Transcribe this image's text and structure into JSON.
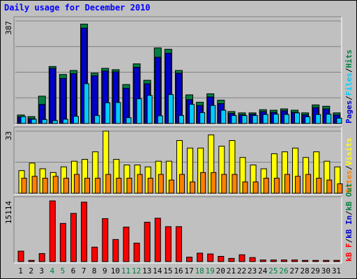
{
  "title": "Daily usage for December 2010",
  "colors": {
    "background": "#c0c0c0",
    "pages": "#0000cc",
    "files": "#00ccff",
    "hits": "#008040",
    "visits": "#ffff00",
    "sites": "#ff8000",
    "kbin": "#ff0000",
    "kbout": "#ff0000",
    "grid": "#808080"
  },
  "chart_data": [
    {
      "type": "bar",
      "name": "hits-files-pages",
      "y_max_label": "387",
      "ylim": [
        0,
        387
      ],
      "grid": true,
      "categories": [
        "1",
        "2",
        "3",
        "4",
        "5",
        "6",
        "7",
        "8",
        "9",
        "10",
        "11",
        "12",
        "13",
        "14",
        "15",
        "16",
        "17",
        "18",
        "19",
        "20",
        "21",
        "22",
        "23",
        "24",
        "25",
        "26",
        "27",
        "28",
        "29",
        "30",
        "31"
      ],
      "weekend_days": [
        4,
        5,
        11,
        12,
        18,
        19,
        25,
        26
      ],
      "axis_label_parts": [
        "Pages",
        "/",
        "Files",
        "/",
        "Hits"
      ],
      "series": [
        {
          "name": "Hits",
          "values": [
            32,
            26,
            103,
            215,
            185,
            200,
            375,
            190,
            208,
            203,
            147,
            225,
            163,
            285,
            280,
            200,
            108,
            80,
            112,
            88,
            45,
            40,
            40,
            52,
            50,
            55,
            50,
            40,
            70,
            65,
            40
          ]
        },
        {
          "name": "Pages",
          "values": [
            25,
            18,
            72,
            208,
            170,
            188,
            360,
            180,
            198,
            195,
            133,
            212,
            150,
            250,
            265,
            190,
            90,
            68,
            100,
            75,
            38,
            33,
            35,
            45,
            42,
            48,
            42,
            33,
            60,
            55,
            32
          ]
        },
        {
          "name": "Files",
          "values": [
            26,
            16,
            15,
            11,
            16,
            27,
            150,
            30,
            78,
            79,
            22,
            93,
            106,
            29,
            109,
            30,
            72,
            41,
            68,
            50,
            30,
            30,
            30,
            34,
            35,
            34,
            40,
            25,
            34,
            35,
            20
          ]
        }
      ]
    },
    {
      "type": "bar",
      "name": "visits-sites",
      "y_max_label": "33",
      "ylim": [
        0,
        33
      ],
      "grid": true,
      "categories": [
        "1",
        "2",
        "3",
        "4",
        "5",
        "6",
        "7",
        "8",
        "9",
        "10",
        "11",
        "12",
        "13",
        "14",
        "15",
        "16",
        "17",
        "18",
        "19",
        "20",
        "21",
        "22",
        "23",
        "24",
        "25",
        "26",
        "27",
        "28",
        "29",
        "30",
        "31"
      ],
      "axis_label_parts": [
        "Sites",
        "/",
        "Visits"
      ],
      "series": [
        {
          "name": "Visits",
          "values": [
            12,
            16,
            13,
            11,
            14,
            17,
            18,
            22,
            33,
            18,
            15,
            15,
            14,
            17,
            17,
            28,
            24,
            24,
            31,
            25,
            28,
            19,
            15,
            13,
            21,
            22,
            24,
            19,
            22,
            17,
            14
          ]
        },
        {
          "name": "Sites",
          "values": [
            8,
            9,
            8,
            9,
            8,
            10,
            8,
            8,
            10,
            8,
            8,
            10,
            8,
            10,
            7,
            10,
            6,
            11,
            11,
            10,
            10,
            6,
            6,
            8,
            8,
            10,
            9,
            10,
            8,
            7,
            5
          ]
        }
      ]
    },
    {
      "type": "bar",
      "name": "kbytes",
      "y_max_label": "15114",
      "ylim": [
        0,
        15114
      ],
      "grid": false,
      "categories": [
        "1",
        "2",
        "3",
        "4",
        "5",
        "6",
        "7",
        "8",
        "9",
        "10",
        "11",
        "12",
        "13",
        "14",
        "15",
        "16",
        "17",
        "18",
        "19",
        "20",
        "21",
        "22",
        "23",
        "24",
        "25",
        "26",
        "27",
        "28",
        "29",
        "30",
        "31"
      ],
      "axis_label_parts": [
        "kB F",
        "/",
        "kB In",
        "/",
        "kB Out"
      ],
      "series": [
        {
          "name": "kB F",
          "values": [
            2600,
            300,
            2000,
            15114,
            9500,
            12000,
            14800,
            3600,
            10700,
            5500,
            8600,
            4600,
            9800,
            10800,
            8700,
            8700,
            1100,
            2100,
            1900,
            1300,
            800,
            1700,
            1000,
            400,
            400,
            400,
            400,
            300,
            300,
            300,
            300
          ]
        }
      ]
    }
  ]
}
